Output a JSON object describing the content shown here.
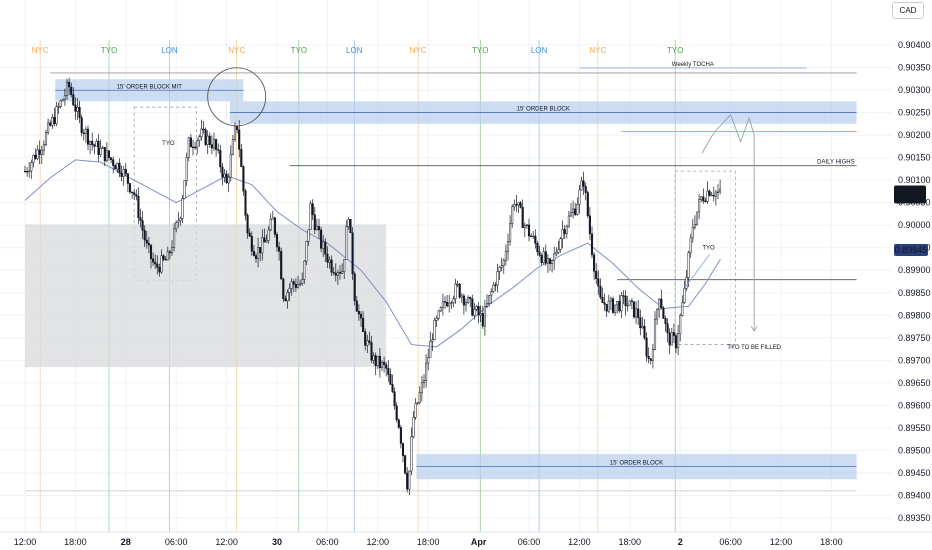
{
  "currency": "CAD",
  "chart_data": {
    "type": "candlestick",
    "y_axis": {
      "min": 0.8933,
      "max": 0.9043,
      "ticks": [
        "0.90400",
        "0.90350",
        "0.90300",
        "0.90250",
        "0.90200",
        "0.90150",
        "0.90100",
        "0.90050",
        "0.90000",
        "0.89950",
        "0.89900",
        "0.89850",
        "0.89800",
        "0.89750",
        "0.89700",
        "0.89650",
        "0.89600",
        "0.89550",
        "0.89500",
        "0.89450",
        "0.89400",
        "0.89350"
      ],
      "last_price": "0.90068",
      "countdown": "07:30",
      "marker_price": "0.89945",
      "marker_color": "#2a3f7a"
    },
    "x_axis": {
      "ticks": [
        {
          "label": "12:00",
          "hour": 0
        },
        {
          "label": "18:00",
          "hour": 6
        },
        {
          "label": "28",
          "hour": 12
        },
        {
          "label": "06:00",
          "hour": 18
        },
        {
          "label": "12:00",
          "hour": 24
        },
        {
          "label": "30",
          "hour": 30
        },
        {
          "label": "06:00",
          "hour": 36
        },
        {
          "label": "12:00",
          "hour": 42
        },
        {
          "label": "18:00",
          "hour": 48
        },
        {
          "label": "Apr",
          "hour": 54
        },
        {
          "label": "06:00",
          "hour": 60
        },
        {
          "label": "12:00",
          "hour": 66
        },
        {
          "label": "18:00",
          "hour": 72
        },
        {
          "label": "2",
          "hour": 78
        },
        {
          "label": "06:00",
          "hour": 84
        },
        {
          "label": "12:00",
          "hour": 90
        },
        {
          "label": "18:00",
          "hour": 96
        }
      ]
    },
    "sessions": [
      {
        "label": "NYC",
        "hour": 1.8,
        "color": "#f2a94a"
      },
      {
        "label": "TYO",
        "hour": 10,
        "color": "#4a9f4a"
      },
      {
        "label": "LON",
        "hour": 17.2,
        "color": "#3f8fe0"
      },
      {
        "label": "NYC",
        "hour": 25.2,
        "color": "#f2a94a"
      },
      {
        "label": "TYO",
        "hour": 32.6,
        "color": "#4a9f4a"
      },
      {
        "label": "LON",
        "hour": 39.2,
        "color": "#3f8fe0"
      },
      {
        "label": "NYC",
        "hour": 46.8,
        "color": "#f2a94a"
      },
      {
        "label": "TYO",
        "hour": 54.2,
        "color": "#4a9f4a"
      },
      {
        "label": "LON",
        "hour": 61.2,
        "color": "#3f8fe0"
      },
      {
        "label": "NYC",
        "hour": 68.2,
        "color": "#f2a94a"
      },
      {
        "label": "TYO",
        "hour": 77.4,
        "color": "#4a9f4a"
      }
    ],
    "zones": [
      {
        "label": "15' ORDER BLOCK MIT",
        "h0": 3.6,
        "h1": 26,
        "top": 0.90324,
        "bottom": 0.90275
      },
      {
        "label": "15' ORDER BLOCK",
        "h0": 24.4,
        "h1": 99,
        "top": 0.90275,
        "bottom": 0.90225
      },
      {
        "label": "15' ORDER BLOCK",
        "h0": 46.6,
        "h1": 99,
        "top": 0.89492,
        "bottom": 0.89436
      }
    ],
    "levels": [
      {
        "label": "DAILY HIGHS",
        "h0": 31.5,
        "h1": 99,
        "price": 0.90132,
        "color": "#555555"
      },
      {
        "label": "",
        "h0": 70.5,
        "h1": 99,
        "price": 0.89879,
        "color": "#555555"
      },
      {
        "label": "",
        "h0": 71,
        "h1": 99,
        "price": 0.90208,
        "color": "#f0a35c"
      },
      {
        "label": "",
        "h0": 3,
        "h1": 99,
        "price": 0.90338,
        "color": "#999999"
      },
      {
        "label": "Weekly TOCHA",
        "h0": 66,
        "h1": 93,
        "price": 0.90349,
        "color": "#8aa9e0"
      },
      {
        "label": "",
        "h0": 0,
        "h1": 99,
        "price": 0.8941,
        "color": "#bbbbbb"
      }
    ],
    "boxes": [
      {
        "label": "TYO",
        "h0": 13,
        "h1": 20.4,
        "top": 0.90262,
        "bottom": 0.89878
      },
      {
        "label": "TYO",
        "h0": 77.4,
        "h1": 84.6,
        "top": 0.9012,
        "bottom": 0.89735
      },
      {
        "label": "",
        "h0": 0,
        "h1": 43,
        "top": 0.90002,
        "bottom": 0.89685
      }
    ],
    "annotations": [
      {
        "text": "TYO TO BE FILLED",
        "hour": 86.8,
        "price": 0.8973
      }
    ],
    "projection": [
      {
        "hour": 82,
        "price": 0.90205
      },
      {
        "hour": 84,
        "price": 0.90245
      },
      {
        "hour": 85.2,
        "price": 0.90185
      },
      {
        "hour": 86.2,
        "price": 0.90238
      },
      {
        "hour": 86.8,
        "price": 0.902
      },
      {
        "hour": 86.8,
        "price": 0.89765
      }
    ],
    "moving_average": [
      {
        "hour": 0,
        "price": 0.90055
      },
      {
        "hour": 3,
        "price": 0.90105
      },
      {
        "hour": 6,
        "price": 0.90145
      },
      {
        "hour": 9,
        "price": 0.9014
      },
      {
        "hour": 12,
        "price": 0.9011
      },
      {
        "hour": 15,
        "price": 0.9008
      },
      {
        "hour": 18,
        "price": 0.9005
      },
      {
        "hour": 21,
        "price": 0.9008
      },
      {
        "hour": 24,
        "price": 0.9011
      },
      {
        "hour": 27,
        "price": 0.9009
      },
      {
        "hour": 30,
        "price": 0.9003
      },
      {
        "hour": 33,
        "price": 0.8999
      },
      {
        "hour": 36,
        "price": 0.8996
      },
      {
        "hour": 40,
        "price": 0.899
      },
      {
        "hour": 43,
        "price": 0.8983
      },
      {
        "hour": 46,
        "price": 0.89735
      },
      {
        "hour": 49,
        "price": 0.8973
      },
      {
        "hour": 52,
        "price": 0.8977
      },
      {
        "hour": 55,
        "price": 0.8982
      },
      {
        "hour": 58,
        "price": 0.8986
      },
      {
        "hour": 61,
        "price": 0.89905
      },
      {
        "hour": 64,
        "price": 0.89935
      },
      {
        "hour": 67,
        "price": 0.8996
      },
      {
        "hour": 70,
        "price": 0.89915
      },
      {
        "hour": 73,
        "price": 0.8986
      },
      {
        "hour": 76,
        "price": 0.89815
      },
      {
        "hour": 79,
        "price": 0.8982
      },
      {
        "hour": 81,
        "price": 0.8987
      },
      {
        "hour": 82.8,
        "price": 0.89925
      }
    ],
    "price_path": [
      {
        "hour": 0,
        "price": 0.9012
      },
      {
        "hour": 2,
        "price": 0.9018
      },
      {
        "hour": 4,
        "price": 0.9026
      },
      {
        "hour": 5.2,
        "price": 0.9031
      },
      {
        "hour": 6.5,
        "price": 0.9023
      },
      {
        "hour": 8,
        "price": 0.9018
      },
      {
        "hour": 10,
        "price": 0.9015
      },
      {
        "hour": 11.5,
        "price": 0.90125
      },
      {
        "hour": 13,
        "price": 0.9007
      },
      {
        "hour": 14.5,
        "price": 0.8995
      },
      {
        "hour": 15.5,
        "price": 0.89905
      },
      {
        "hour": 17,
        "price": 0.89925
      },
      {
        "hour": 18.5,
        "price": 0.9003
      },
      {
        "hour": 19.5,
        "price": 0.9018
      },
      {
        "hour": 21,
        "price": 0.902
      },
      {
        "hour": 22.5,
        "price": 0.9018
      },
      {
        "hour": 24,
        "price": 0.9009
      },
      {
        "hour": 25.2,
        "price": 0.9023
      },
      {
        "hour": 25.6,
        "price": 0.90155
      },
      {
        "hour": 26.5,
        "price": 0.8998
      },
      {
        "hour": 27.5,
        "price": 0.8994
      },
      {
        "hour": 28.5,
        "price": 0.8996
      },
      {
        "hour": 29.5,
        "price": 0.9001
      },
      {
        "hour": 30.2,
        "price": 0.8995
      },
      {
        "hour": 30.8,
        "price": 0.8984
      },
      {
        "hour": 31.8,
        "price": 0.8987
      },
      {
        "hour": 33,
        "price": 0.8987
      },
      {
        "hour": 34,
        "price": 0.9004
      },
      {
        "hour": 35.2,
        "price": 0.8996
      },
      {
        "hour": 36.5,
        "price": 0.8991
      },
      {
        "hour": 37.8,
        "price": 0.899
      },
      {
        "hour": 38.5,
        "price": 0.9003
      },
      {
        "hour": 39.2,
        "price": 0.8985
      },
      {
        "hour": 40.2,
        "price": 0.8976
      },
      {
        "hour": 41.5,
        "price": 0.897
      },
      {
        "hour": 43,
        "price": 0.8968
      },
      {
        "hour": 44.5,
        "price": 0.8956
      },
      {
        "hour": 45.6,
        "price": 0.89415
      },
      {
        "hour": 46.2,
        "price": 0.8957
      },
      {
        "hour": 47.4,
        "price": 0.8965
      },
      {
        "hour": 48.5,
        "price": 0.8976
      },
      {
        "hour": 50,
        "price": 0.8983
      },
      {
        "hour": 51.5,
        "price": 0.8986
      },
      {
        "hour": 53,
        "price": 0.8982
      },
      {
        "hour": 54.5,
        "price": 0.8979
      },
      {
        "hour": 56,
        "price": 0.8988
      },
      {
        "hour": 57,
        "price": 0.8992
      },
      {
        "hour": 58.2,
        "price": 0.9006
      },
      {
        "hour": 59.5,
        "price": 0.9
      },
      {
        "hour": 61,
        "price": 0.8995
      },
      {
        "hour": 62.5,
        "price": 0.899
      },
      {
        "hour": 64,
        "price": 0.8999
      },
      {
        "hour": 65.5,
        "price": 0.9004
      },
      {
        "hour": 66.5,
        "price": 0.901
      },
      {
        "hour": 67.4,
        "price": 0.8996
      },
      {
        "hour": 68.4,
        "price": 0.8983
      },
      {
        "hour": 69.8,
        "price": 0.8982
      },
      {
        "hour": 71.5,
        "price": 0.8983
      },
      {
        "hour": 73,
        "price": 0.898
      },
      {
        "hour": 74.4,
        "price": 0.8969
      },
      {
        "hour": 75.5,
        "price": 0.8985
      },
      {
        "hour": 76.5,
        "price": 0.8975
      },
      {
        "hour": 77.5,
        "price": 0.8974
      },
      {
        "hour": 78.5,
        "price": 0.8985
      },
      {
        "hour": 79.5,
        "price": 0.9
      },
      {
        "hour": 80.5,
        "price": 0.9006
      },
      {
        "hour": 81.5,
        "price": 0.9008
      },
      {
        "hour": 82.8,
        "price": 0.90068
      }
    ]
  }
}
